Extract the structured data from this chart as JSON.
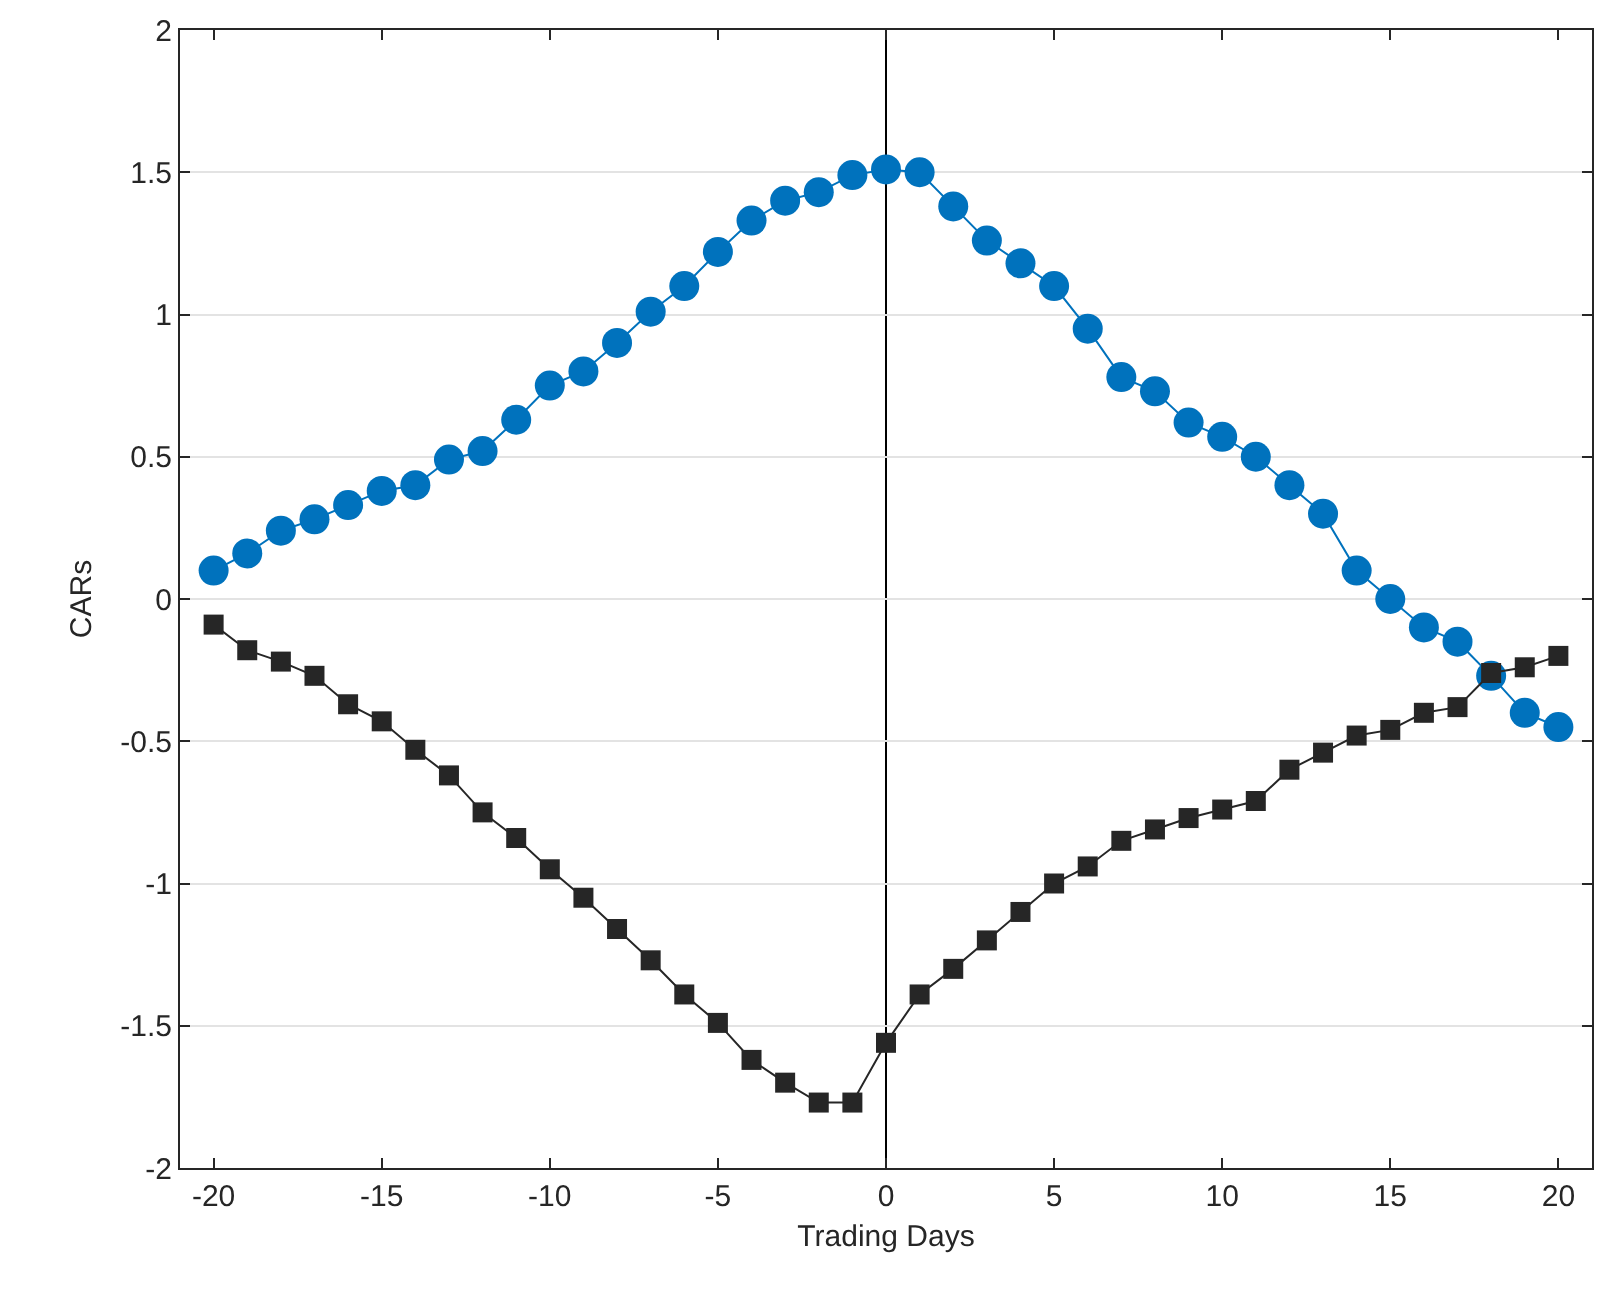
{
  "chart_data": {
    "type": "line",
    "xlabel": "Trading Days",
    "ylabel": "CARs",
    "x": [
      -20,
      -19,
      -18,
      -17,
      -16,
      -15,
      -14,
      -13,
      -12,
      -11,
      -10,
      -9,
      -8,
      -7,
      -6,
      -5,
      -4,
      -3,
      -2,
      -1,
      0,
      1,
      2,
      3,
      4,
      5,
      6,
      7,
      8,
      9,
      10,
      11,
      12,
      13,
      14,
      15,
      16,
      17,
      18,
      19,
      20
    ],
    "series": [
      {
        "color": "#0072bd",
        "marker": "circle",
        "values": [
          0.1,
          0.16,
          0.24,
          0.28,
          0.33,
          0.38,
          0.4,
          0.49,
          0.52,
          0.63,
          0.75,
          0.8,
          0.9,
          1.01,
          1.1,
          1.22,
          1.33,
          1.4,
          1.43,
          1.49,
          1.51,
          1.5,
          1.38,
          1.26,
          1.18,
          1.1,
          0.95,
          0.78,
          0.73,
          0.62,
          0.57,
          0.5,
          0.4,
          0.3,
          0.1,
          0,
          -0.1,
          -0.15,
          -0.27,
          -0.4,
          -0.45
        ]
      },
      {
        "color": "#262626",
        "marker": "square",
        "values": [
          -0.09,
          -0.18,
          -0.22,
          -0.27,
          -0.37,
          -0.43,
          -0.53,
          -0.62,
          -0.75,
          -0.84,
          -0.95,
          -1.05,
          -1.16,
          -1.27,
          -1.39,
          -1.49,
          -1.62,
          -1.7,
          -1.77,
          -1.77,
          -1.56,
          -1.39,
          -1.3,
          -1.2,
          -1.1,
          -1,
          -0.94,
          -0.85,
          -0.81,
          -0.77,
          -0.74,
          -0.71,
          -0.6,
          -0.54,
          -0.48,
          -0.46,
          -0.4,
          -0.38,
          -0.26,
          -0.24,
          -0.2
        ]
      }
    ],
    "xlim": [
      -21,
      21
    ],
    "xticks": [
      -20,
      -15,
      -10,
      -5,
      0,
      5,
      10,
      15,
      20
    ],
    "ylim": [
      -2,
      2
    ],
    "yticks": [
      -2,
      -1.5,
      -1,
      -0.5,
      0,
      0.5,
      1,
      1.5,
      2
    ],
    "grid": "y",
    "ref_lines": [
      {
        "axis": "x",
        "value": 0,
        "color": "#000000"
      }
    ]
  }
}
